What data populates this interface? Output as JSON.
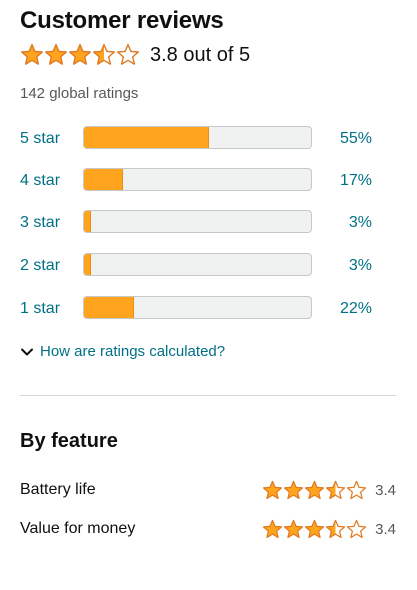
{
  "header": {
    "title": "Customer reviews",
    "rating_value": 3.8,
    "rating_text": "3.8 out of 5",
    "total_ratings": "142 global ratings"
  },
  "histogram": [
    {
      "label": "5 star",
      "percent": 55,
      "percent_text": "55%"
    },
    {
      "label": "4 star",
      "percent": 17,
      "percent_text": "17%"
    },
    {
      "label": "3 star",
      "percent": 3,
      "percent_text": "3%"
    },
    {
      "label": "2 star",
      "percent": 3,
      "percent_text": "3%"
    },
    {
      "label": "1 star",
      "percent": 22,
      "percent_text": "22%"
    }
  ],
  "how_link": {
    "label": "How are ratings calculated?",
    "icon": "chevron-down-icon"
  },
  "features": {
    "heading": "By feature",
    "items": [
      {
        "name": "Battery life",
        "rating": 3.4,
        "rating_text": "3.4"
      },
      {
        "name": "Value for money",
        "rating": 3.4,
        "rating_text": "3.4"
      }
    ]
  },
  "colors": {
    "star_fill": "#ffa41c",
    "star_stroke": "#de7921",
    "bar_fill": "#ffa41c",
    "bar_track": "#f0f2f2",
    "link": "#007185",
    "text": "#0f1111",
    "secondary_text": "#565959",
    "divider": "#d5d9d9"
  }
}
